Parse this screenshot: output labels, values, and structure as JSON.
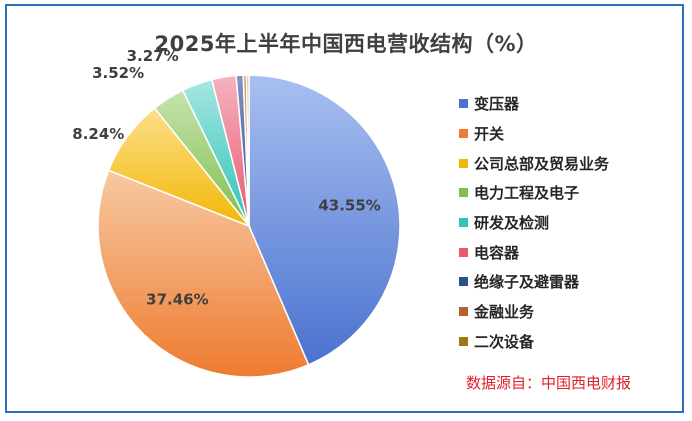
{
  "chart_data": {
    "type": "pie",
    "title": "2025年上半年中国西电营收结构（%）",
    "slices": [
      {
        "label": "变压器",
        "value": 43.55,
        "data_label": "43.55%",
        "color": "#4a72cf",
        "color_light": "#a8bff0"
      },
      {
        "label": "开关",
        "value": 37.46,
        "data_label": "37.46%",
        "color": "#ee7b2f",
        "color_light": "#f7c9a2"
      },
      {
        "label": "公司总部及贸易业务",
        "value": 8.24,
        "data_label": "8.24%",
        "color": "#f2b705",
        "color_light": "#fbe08a"
      },
      {
        "label": "电力工程及电子",
        "value": 3.52,
        "data_label": "3.52%",
        "color": "#7fbf4f",
        "color_light": "#c6e3ad"
      },
      {
        "label": "研发及检测",
        "value": 3.27,
        "data_label": "3.27%",
        "color": "#2fc3b9",
        "color_light": "#a6e6e1"
      },
      {
        "label": "电容器",
        "value": 2.6,
        "data_label": "",
        "color": "#e8586f",
        "color_light": "#f5b3bf"
      },
      {
        "label": "绝缘子及避雷器",
        "value": 0.75,
        "data_label": "",
        "color": "#2f4f8f",
        "color_light": "#7f95c4"
      },
      {
        "label": "金融业务",
        "value": 0.35,
        "data_label": "",
        "color": "#b5622a",
        "color_light": "#dba47c"
      },
      {
        "label": "二次设备",
        "value": 0.26,
        "data_label": "",
        "color": "#9c7a10",
        "color_light": "#d4bb62"
      }
    ],
    "legend_position": "right",
    "source_note": "数据源自：中国西电财报"
  }
}
